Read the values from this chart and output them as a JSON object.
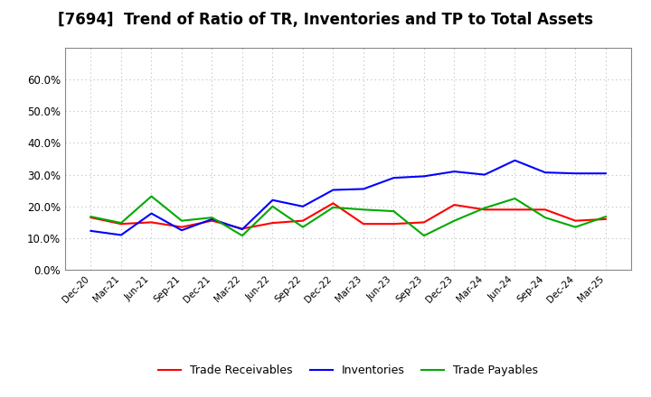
{
  "title": "[7694]  Trend of Ratio of TR, Inventories and TP to Total Assets",
  "x_labels": [
    "Dec-20",
    "Mar-21",
    "Jun-21",
    "Sep-21",
    "Dec-21",
    "Mar-22",
    "Jun-22",
    "Sep-22",
    "Dec-22",
    "Mar-23",
    "Jun-23",
    "Sep-23",
    "Dec-23",
    "Mar-24",
    "Jun-24",
    "Sep-24",
    "Dec-24",
    "Mar-25"
  ],
  "trade_receivables": [
    0.165,
    0.145,
    0.15,
    0.135,
    0.155,
    0.13,
    0.148,
    0.155,
    0.21,
    0.145,
    0.145,
    0.15,
    0.205,
    0.19,
    0.19,
    0.19,
    0.155,
    0.16
  ],
  "inventories": [
    0.123,
    0.11,
    0.178,
    0.125,
    0.16,
    0.128,
    0.22,
    0.2,
    0.252,
    0.255,
    0.29,
    0.295,
    0.31,
    0.3,
    0.345,
    0.307,
    0.304,
    0.304
  ],
  "trade_payables": [
    0.168,
    0.148,
    0.232,
    0.155,
    0.165,
    0.108,
    0.2,
    0.135,
    0.197,
    0.19,
    0.185,
    0.108,
    0.155,
    0.195,
    0.225,
    0.165,
    0.135,
    0.168
  ],
  "ylim": [
    0.0,
    0.7
  ],
  "yticks": [
    0.0,
    0.1,
    0.2,
    0.3,
    0.4,
    0.5,
    0.6
  ],
  "line_colors": {
    "trade_receivables": "#ff0000",
    "inventories": "#0000ff",
    "trade_payables": "#00aa00"
  },
  "legend_labels": [
    "Trade Receivables",
    "Inventories",
    "Trade Payables"
  ],
  "background_color": "#ffffff",
  "grid_color": "#aaaaaa",
  "title_fontsize": 12
}
